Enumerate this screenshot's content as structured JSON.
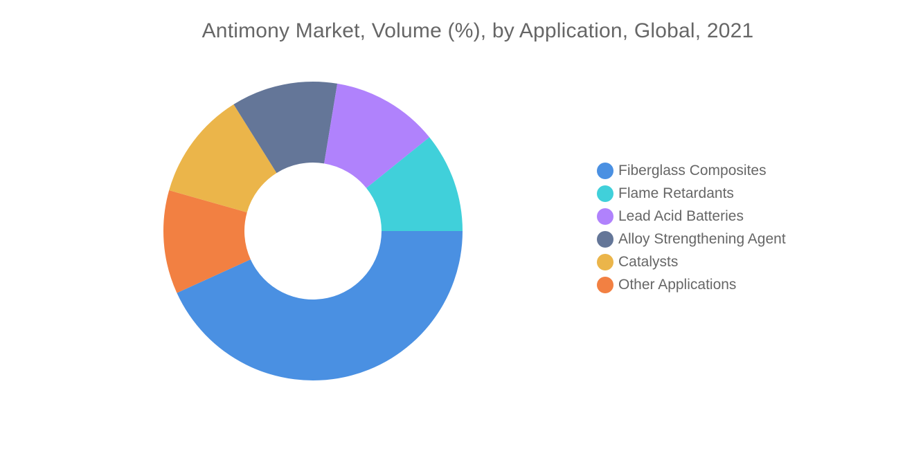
{
  "chart_data": {
    "type": "pie",
    "variant": "donut",
    "title": "Antimony Market, Volume (%), by Application, Global, 2021",
    "legend_position": "right",
    "start": "right, clockwise",
    "slices": [
      {
        "label": "Fiberglass Composites",
        "value": 43.2,
        "color": "#4a90e2"
      },
      {
        "label": "Other Applications",
        "value": 11.2,
        "color": "#f28042"
      },
      {
        "label": "Catalysts",
        "value": 11.7,
        "color": "#ebb54a"
      },
      {
        "label": "Alloy Strengthening Agent",
        "value": 11.5,
        "color": "#647698"
      },
      {
        "label": "Lead Acid Batteries",
        "value": 11.6,
        "color": "#b082fc"
      },
      {
        "label": "Flame Retardants",
        "value": 10.8,
        "color": "#40d0da"
      }
    ],
    "legend": [
      {
        "label": "Fiberglass Composites",
        "color": "#4a90e2"
      },
      {
        "label": "Flame Retardants",
        "color": "#40d0da"
      },
      {
        "label": "Lead Acid Batteries",
        "color": "#b082fc"
      },
      {
        "label": "Alloy Strengthening Agent",
        "color": "#647698"
      },
      {
        "label": "Catalysts",
        "color": "#ebb54a"
      },
      {
        "label": "Other Applications",
        "color": "#f28042"
      }
    ]
  }
}
